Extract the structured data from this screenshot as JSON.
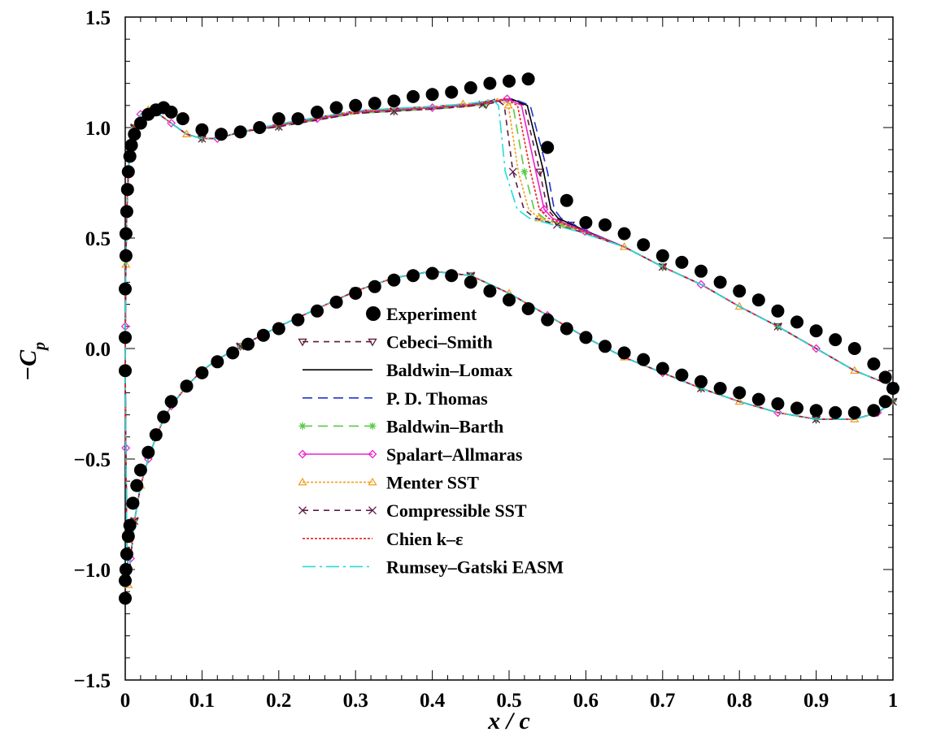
{
  "chart_data": {
    "type": "line",
    "title": "",
    "xlabel": "x / c",
    "ylabel": "−C",
    "ylabel_sub": "p",
    "xlim": [
      0,
      1
    ],
    "ylim": [
      -1.5,
      1.5
    ],
    "x_ticks": [
      0,
      0.1,
      0.2,
      0.3,
      0.4,
      0.5,
      0.6,
      0.7,
      0.8,
      0.9,
      1
    ],
    "x_tick_labels": [
      "0",
      "0.1",
      "0.2",
      "0.3",
      "0.4",
      "0.5",
      "0.6",
      "0.7",
      "0.8",
      "0.9",
      "1"
    ],
    "y_ticks": [
      -1.5,
      -1.0,
      -0.5,
      0.0,
      0.5,
      1.0,
      1.5
    ],
    "y_tick_labels": [
      "−1.5",
      "−1.0",
      "−0.5",
      "0.0",
      "0.5",
      "1.0",
      "1.5"
    ],
    "grid": false,
    "legend_position": "center",
    "experiment": {
      "name": "Experiment",
      "color": "#000000",
      "x": [
        0.0,
        0.0,
        0.0,
        0.001,
        0.001,
        0.002,
        0.003,
        0.004,
        0.006,
        0.008,
        0.012,
        0.02,
        0.03,
        0.04,
        0.05,
        0.06,
        0.075,
        0.1,
        0.125,
        0.15,
        0.175,
        0.2,
        0.225,
        0.25,
        0.275,
        0.3,
        0.325,
        0.35,
        0.375,
        0.4,
        0.425,
        0.45,
        0.475,
        0.5,
        0.525,
        0.55,
        0.575,
        0.6,
        0.625,
        0.65,
        0.675,
        0.7,
        0.725,
        0.75,
        0.775,
        0.8,
        0.825,
        0.85,
        0.875,
        0.9,
        0.925,
        0.95,
        0.975,
        0.99,
        1.0,
        0.0,
        0.0,
        0.001,
        0.002,
        0.004,
        0.006,
        0.01,
        0.015,
        0.02,
        0.03,
        0.04,
        0.05,
        0.06,
        0.08,
        0.1,
        0.12,
        0.14,
        0.16,
        0.18,
        0.2,
        0.225,
        0.25,
        0.275,
        0.3,
        0.325,
        0.35,
        0.375,
        0.4,
        0.425,
        0.45,
        0.475,
        0.5,
        0.525,
        0.55,
        0.575,
        0.6,
        0.625,
        0.65,
        0.675,
        0.7,
        0.725,
        0.75,
        0.775,
        0.8,
        0.825,
        0.85,
        0.875,
        0.9,
        0.925,
        0.95,
        0.975,
        0.99
      ],
      "y": [
        -0.1,
        0.05,
        0.27,
        0.42,
        0.52,
        0.62,
        0.72,
        0.8,
        0.87,
        0.92,
        0.97,
        1.02,
        1.06,
        1.08,
        1.09,
        1.07,
        1.04,
        0.99,
        0.97,
        0.98,
        1.0,
        1.04,
        1.04,
        1.07,
        1.09,
        1.1,
        1.11,
        1.12,
        1.14,
        1.15,
        1.16,
        1.18,
        1.2,
        1.21,
        1.22,
        0.91,
        0.67,
        0.57,
        0.56,
        0.52,
        0.47,
        0.42,
        0.39,
        0.35,
        0.3,
        0.26,
        0.22,
        0.17,
        0.12,
        0.08,
        0.04,
        0.0,
        -0.07,
        -0.13,
        -0.18,
        -1.13,
        -1.05,
        -1.0,
        -0.93,
        -0.85,
        -0.8,
        -0.7,
        -0.62,
        -0.55,
        -0.47,
        -0.39,
        -0.31,
        -0.24,
        -0.17,
        -0.11,
        -0.06,
        -0.02,
        0.02,
        0.06,
        0.09,
        0.13,
        0.17,
        0.21,
        0.25,
        0.28,
        0.31,
        0.33,
        0.34,
        0.33,
        0.3,
        0.26,
        0.22,
        0.18,
        0.13,
        0.09,
        0.05,
        0.01,
        -0.02,
        -0.05,
        -0.09,
        -0.12,
        -0.15,
        -0.18,
        -0.2,
        -0.23,
        -0.25,
        -0.27,
        -0.28,
        -0.29,
        -0.29,
        -0.28,
        -0.24
      ]
    },
    "upper_surface": {
      "x": [
        1.0,
        0.95,
        0.9,
        0.85,
        0.8,
        0.75,
        0.7,
        0.65,
        0.6,
        0.58,
        0.56,
        0.55,
        0.54,
        0.52,
        0.5,
        0.47,
        0.44,
        0.4,
        0.35,
        0.3,
        0.25,
        0.2,
        0.15,
        0.12,
        0.1,
        0.08,
        0.06,
        0.04,
        0.03,
        0.02,
        0.012,
        0.007,
        0.004,
        0.002,
        0.0008,
        0.0002,
        0.0
      ],
      "base_y": [
        -0.17,
        -0.1,
        0.0,
        0.1,
        0.19,
        0.29,
        0.37,
        0.46,
        0.53,
        0.56,
        0.59,
        0.63,
        0.8,
        1.1,
        1.13,
        1.11,
        1.1,
        1.09,
        1.08,
        1.07,
        1.04,
        1.01,
        0.98,
        0.95,
        0.95,
        0.97,
        1.02,
        1.07,
        1.08,
        1.06,
        1.0,
        0.92,
        0.8,
        0.62,
        0.38,
        0.1,
        -0.1
      ]
    },
    "lower_surface": {
      "x": [
        0.0,
        0.0008,
        0.002,
        0.004,
        0.007,
        0.012,
        0.02,
        0.03,
        0.04,
        0.05,
        0.06,
        0.08,
        0.1,
        0.12,
        0.15,
        0.2,
        0.25,
        0.3,
        0.35,
        0.4,
        0.45,
        0.5,
        0.55,
        0.6,
        0.65,
        0.7,
        0.75,
        0.8,
        0.85,
        0.9,
        0.95,
        0.98,
        1.0
      ],
      "y": [
        -0.1,
        -0.45,
        -0.85,
        -1.07,
        -0.95,
        -0.78,
        -0.62,
        -0.5,
        -0.4,
        -0.32,
        -0.26,
        -0.17,
        -0.1,
        -0.05,
        0.01,
        0.1,
        0.18,
        0.26,
        0.32,
        0.35,
        0.33,
        0.25,
        0.15,
        0.05,
        -0.04,
        -0.11,
        -0.18,
        -0.24,
        -0.29,
        -0.32,
        -0.32,
        -0.29,
        -0.24
      ]
    },
    "series": [
      {
        "name": "Cebeci–Smith",
        "color": "#5c1a3a",
        "dash": "7,6",
        "marker": "tri-down",
        "shock_shift": 0.0
      },
      {
        "name": "Baldwin–Lomax",
        "color": "#000000",
        "dash": "",
        "marker": "none",
        "shock_shift": 0.005
      },
      {
        "name": "P. D. Thomas",
        "color": "#2233cc",
        "dash": "12,7",
        "marker": "none",
        "shock_shift": 0.01
      },
      {
        "name": "Baldwin–Barth",
        "color": "#55cc44",
        "dash": "12,7",
        "marker": "star",
        "shock_shift": -0.02
      },
      {
        "name": "Spalart–Allmaras",
        "color": "#ee22cc",
        "dash": "",
        "marker": "diamond",
        "shock_shift": -0.005
      },
      {
        "name": "Menter SST",
        "color": "#f0a020",
        "dash": "3,2",
        "marker": "tri-up",
        "shock_shift": -0.028
      },
      {
        "name": "Compressible SST",
        "color": "#5c1a4a",
        "dash": "7,6",
        "marker": "cross",
        "shock_shift": -0.035
      },
      {
        "name": "Chien k–ε",
        "color": "#ee2020",
        "dash": "3,2",
        "marker": "none",
        "shock_shift": -0.012
      },
      {
        "name": "Rumsey–Gatski EASM",
        "color": "#22dddd",
        "dash": "16,5,3,5",
        "marker": "none",
        "shock_shift": -0.045
      }
    ]
  }
}
